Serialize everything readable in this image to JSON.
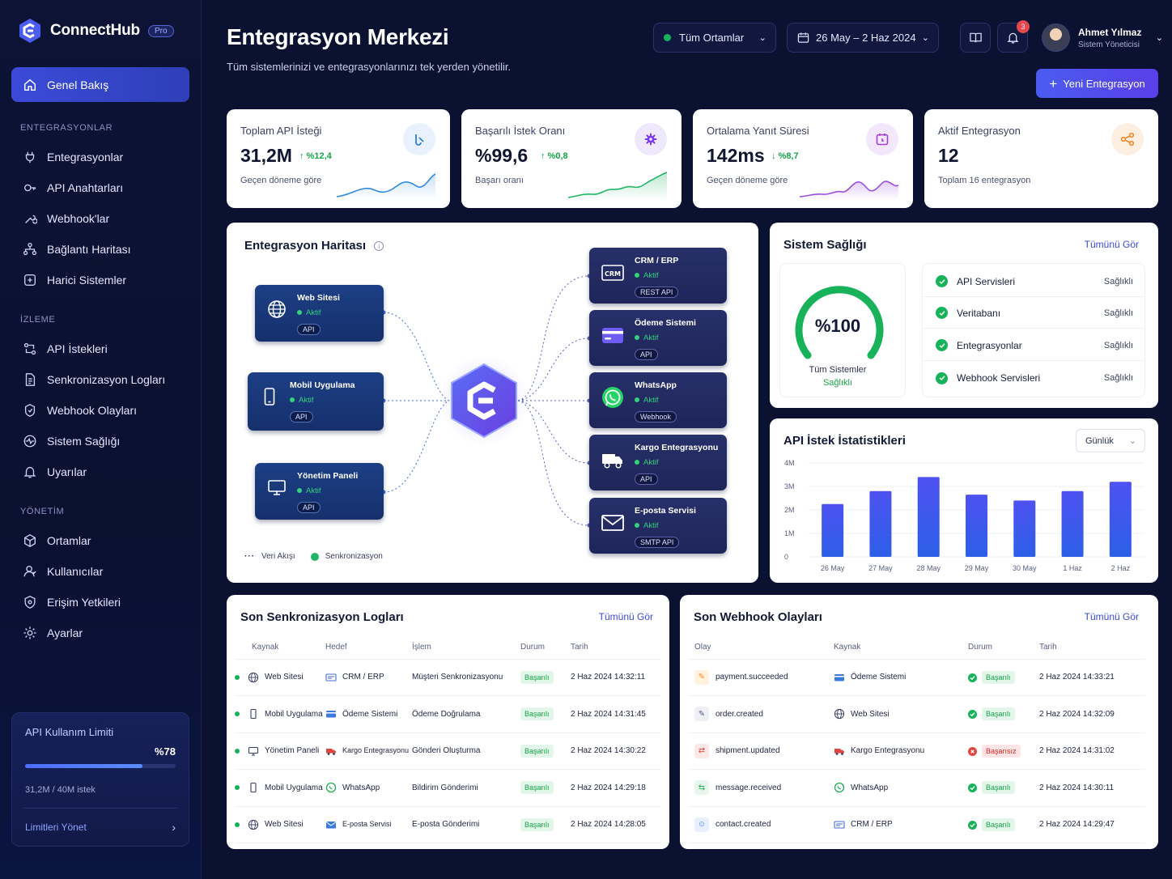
{
  "app": {
    "name": "ConnectHub",
    "badge": "Pro"
  },
  "sidebar": {
    "active": "Genel Bakış",
    "sections": [
      {
        "title": "ENTEGRASYONLAR",
        "items": [
          "Entegrasyonlar",
          "API Anahtarları",
          "Webhook'lar",
          "Bağlantı Haritası",
          "Harici Sistemler"
        ]
      },
      {
        "title": "İZLEME",
        "items": [
          "API İstekleri",
          "Senkronizasyon Logları",
          "Webhook Olayları",
          "Sistem Sağlığı",
          "Uyarılar"
        ]
      },
      {
        "title": "YÖNETİM",
        "items": [
          "Ortamlar",
          "Kullanıcılar",
          "Erişim Yetkileri",
          "Ayarlar"
        ]
      }
    ],
    "limit": {
      "title": "API Kullanım Limiti",
      "percent_label": "%78",
      "percent": 78,
      "usage": "31,2M / 40M istek",
      "manage": "Limitleri Yönet"
    }
  },
  "header": {
    "title": "Entegrasyon Merkezi",
    "subtitle": "Tüm sistemlerinizi ve entegrasyonlarınızı tek yerden yönetilir.",
    "env": "Tüm Ortamlar",
    "date_range": "26 May – 2 Haz 2024",
    "notifications": "3",
    "user_name": "Ahmet Yılmaz",
    "user_role": "Sistem Yöneticisi",
    "new_button": "Yeni Entegrasyon"
  },
  "stats": [
    {
      "label": "Toplam API İsteği",
      "value": "31,2M",
      "change": "↑ %12,4",
      "sub": "Geçen döneme göre",
      "color": "#2f8ae0"
    },
    {
      "label": "Başarılı İstek Oranı",
      "value": "%99,6",
      "change": "↑ %0,8",
      "sub": "Başarı oranı",
      "color": "#22b566"
    },
    {
      "label": "Ortalama Yanıt Süresi",
      "value": "142ms",
      "change": "↓ %8,7",
      "sub": "Geçen döneme göre",
      "color": "#9b4fe0"
    },
    {
      "label": "Aktif Entegrasyon",
      "value": "12",
      "change": "",
      "sub": "Toplam 16 entegrasyon",
      "color": "#f08a2a"
    }
  ],
  "map": {
    "title": "Entegrasyon Haritası",
    "status": "Aktif",
    "left_nodes": [
      {
        "name": "Web Sitesi",
        "tag": "API"
      },
      {
        "name": "Mobil Uygulama",
        "tag": "API"
      },
      {
        "name": "Yönetim Paneli",
        "tag": "API"
      }
    ],
    "right_nodes": [
      {
        "name": "CRM / ERP",
        "tag": "REST API"
      },
      {
        "name": "Ödeme Sistemi",
        "tag": "API"
      },
      {
        "name": "WhatsApp",
        "tag": "Webhook"
      },
      {
        "name": "Kargo Entegrasyonu",
        "tag": "API"
      },
      {
        "name": "E-posta Servisi",
        "tag": "SMTP API"
      }
    ],
    "legend_flow": "Veri Akışı",
    "legend_sync": "Senkronizasyon"
  },
  "health": {
    "title": "Sistem Sağlığı",
    "see_all": "Tümünü Gör",
    "gauge_value": "%100",
    "gauge_percent": 100,
    "gauge_label": "Tüm Sistemler",
    "gauge_status": "Sağlıklı",
    "items": [
      {
        "name": "API Servisleri",
        "status": "Sağlıklı"
      },
      {
        "name": "Veritabanı",
        "status": "Sağlıklı"
      },
      {
        "name": "Entegrasyonlar",
        "status": "Sağlıklı"
      },
      {
        "name": "Webhook Servisleri",
        "status": "Sağlıklı"
      }
    ]
  },
  "chart_data": {
    "type": "bar",
    "title": "API İstek İstatistikleri",
    "period": "Günlük",
    "categories": [
      "26 May",
      "27 May",
      "28 May",
      "29 May",
      "30 May",
      "1 Haz",
      "2 Haz"
    ],
    "values": [
      2.25,
      2.8,
      3.4,
      2.65,
      2.4,
      2.8,
      3.2
    ],
    "ytick_labels": [
      "0",
      "1M",
      "2M",
      "3M",
      "4M"
    ],
    "ylim": [
      0,
      4
    ],
    "grid": true
  },
  "sync_logs": {
    "title": "Son Senkronizasyon Logları",
    "see_all": "Tümünü Gör",
    "headers": [
      "Kaynak",
      "Hedef",
      "İşlem",
      "Durum",
      "Tarih"
    ],
    "rows": [
      {
        "source": "Web Sitesi",
        "target": "CRM / ERP",
        "op": "Müşteri Senkronizasyonu",
        "status": "Başarılı",
        "date": "2 Haz 2024 14:32:11"
      },
      {
        "source": "Mobil Uygulama",
        "target": "Ödeme Sistemi",
        "op": "Ödeme Doğrulama",
        "status": "Başarılı",
        "date": "2 Haz 2024 14:31:45"
      },
      {
        "source": "Yönetim Paneli",
        "target": "Kargo Entegrasyonu",
        "op": "Gönderi Oluşturma",
        "status": "Başarılı",
        "date": "2 Haz 2024 14:30:22"
      },
      {
        "source": "Mobil Uygulama",
        "target": "WhatsApp",
        "op": "Bildirim Gönderimi",
        "status": "Başarılı",
        "date": "2 Haz 2024 14:29:18"
      },
      {
        "source": "Web Sitesi",
        "target": "E-posta Servisi",
        "op": "E-posta Gönderimi",
        "status": "Başarılı",
        "date": "2 Haz 2024 14:28:05"
      }
    ]
  },
  "webhooks": {
    "title": "Son Webhook Olayları",
    "see_all": "Tümünü Gör",
    "headers": [
      "Olay",
      "Kaynak",
      "Durum",
      "Tarih"
    ],
    "rows": [
      {
        "event": "payment.succeeded",
        "source": "Ödeme Sistemi",
        "status": "Başarılı",
        "date": "2 Haz 2024 14:33:21"
      },
      {
        "event": "order.created",
        "source": "Web Sitesi",
        "status": "Başarılı",
        "date": "2 Haz 2024 14:32:09"
      },
      {
        "event": "shipment.updated",
        "source": "Kargo Entegrasyonu",
        "status": "Başarısız",
        "date": "2 Haz 2024 14:31:02"
      },
      {
        "event": "message.received",
        "source": "WhatsApp",
        "status": "Başarılı",
        "date": "2 Haz 2024 14:30:11"
      },
      {
        "event": "contact.created",
        "source": "CRM / ERP",
        "status": "Başarılı",
        "date": "2 Haz 2024 14:29:47"
      }
    ]
  },
  "colors": {
    "accent": "#3b4bd8",
    "success": "#17b25a",
    "danger": "#dc2626",
    "bg": "#0b1130"
  }
}
